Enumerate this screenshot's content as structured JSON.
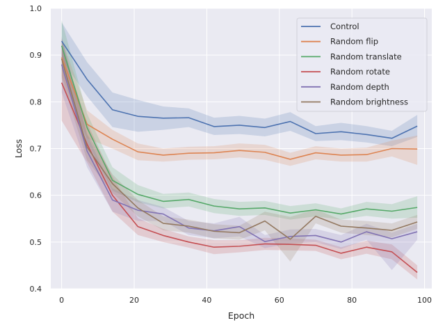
{
  "chart_data": {
    "type": "line",
    "title": "",
    "xlabel": "Epoch",
    "ylabel": "Loss",
    "xlim": [
      -3,
      102
    ],
    "ylim": [
      0.4,
      1.0
    ],
    "xticks": [
      "0",
      "20",
      "40",
      "60",
      "80",
      "100"
    ],
    "yticks": [
      "0.4",
      "0.5",
      "0.6",
      "0.7",
      "0.8",
      "0.9",
      "1.0"
    ],
    "grid": true,
    "legend_position": "top-right",
    "x": [
      0,
      7,
      14,
      21,
      28,
      35,
      42,
      49,
      56,
      63,
      70,
      77,
      84,
      91,
      98
    ],
    "series": [
      {
        "name": "Control",
        "color": "#4c72b0",
        "values": [
          0.93,
          0.848,
          0.783,
          0.769,
          0.765,
          0.766,
          0.747,
          0.75,
          0.745,
          0.758,
          0.732,
          0.736,
          0.73,
          0.722,
          0.748
        ],
        "lower": [
          0.89,
          0.812,
          0.746,
          0.736,
          0.74,
          0.746,
          0.729,
          0.731,
          0.726,
          0.738,
          0.716,
          0.718,
          0.713,
          0.705,
          0.725
        ],
        "upper": [
          0.97,
          0.885,
          0.82,
          0.804,
          0.79,
          0.786,
          0.766,
          0.77,
          0.764,
          0.778,
          0.748,
          0.755,
          0.748,
          0.738,
          0.772
        ]
      },
      {
        "name": "Random flip",
        "color": "#dd8452",
        "values": [
          0.895,
          0.752,
          0.72,
          0.693,
          0.686,
          0.69,
          0.691,
          0.696,
          0.692,
          0.677,
          0.691,
          0.686,
          0.687,
          0.7,
          0.699
        ],
        "lower": [
          0.855,
          0.722,
          0.7,
          0.675,
          0.672,
          0.676,
          0.677,
          0.681,
          0.676,
          0.663,
          0.677,
          0.672,
          0.672,
          0.683,
          0.665
        ],
        "upper": [
          0.935,
          0.782,
          0.74,
          0.711,
          0.7,
          0.704,
          0.705,
          0.711,
          0.708,
          0.691,
          0.705,
          0.7,
          0.702,
          0.717,
          0.728
        ]
      },
      {
        "name": "Random translate",
        "color": "#55a868",
        "values": [
          0.92,
          0.745,
          0.632,
          0.602,
          0.587,
          0.591,
          0.577,
          0.571,
          0.573,
          0.562,
          0.569,
          0.56,
          0.571,
          0.566,
          0.574
        ],
        "lower": [
          0.87,
          0.715,
          0.61,
          0.585,
          0.572,
          0.576,
          0.562,
          0.556,
          0.558,
          0.548,
          0.555,
          0.548,
          0.556,
          0.55,
          0.552
        ],
        "upper": [
          0.975,
          0.775,
          0.66,
          0.622,
          0.603,
          0.606,
          0.592,
          0.586,
          0.588,
          0.577,
          0.583,
          0.572,
          0.586,
          0.581,
          0.598
        ]
      },
      {
        "name": "Random rotate",
        "color": "#c44e52",
        "values": [
          0.841,
          0.71,
          0.6,
          0.533,
          0.514,
          0.5,
          0.489,
          0.491,
          0.496,
          0.495,
          0.493,
          0.476,
          0.489,
          0.479,
          0.435
        ],
        "lower": [
          0.76,
          0.67,
          0.565,
          0.515,
          0.5,
          0.488,
          0.474,
          0.478,
          0.483,
          0.482,
          0.481,
          0.463,
          0.475,
          0.463,
          0.42
        ],
        "upper": [
          0.92,
          0.755,
          0.64,
          0.551,
          0.528,
          0.512,
          0.504,
          0.504,
          0.509,
          0.508,
          0.505,
          0.489,
          0.503,
          0.495,
          0.45
        ]
      },
      {
        "name": "Random depth",
        "color": "#8172b3",
        "values": [
          0.88,
          0.695,
          0.59,
          0.568,
          0.56,
          0.53,
          0.524,
          0.533,
          0.501,
          0.512,
          0.514,
          0.5,
          0.522,
          0.507,
          0.522
        ],
        "lower": [
          0.82,
          0.66,
          0.565,
          0.545,
          0.545,
          0.515,
          0.508,
          0.512,
          0.487,
          0.497,
          0.5,
          0.485,
          0.505,
          0.44,
          0.505
        ],
        "upper": [
          0.94,
          0.73,
          0.615,
          0.59,
          0.575,
          0.545,
          0.54,
          0.554,
          0.515,
          0.527,
          0.528,
          0.515,
          0.539,
          0.52,
          0.539
        ]
      },
      {
        "name": "Random brightness",
        "color": "#937860",
        "values": [
          0.892,
          0.703,
          0.625,
          0.573,
          0.54,
          0.534,
          0.523,
          0.52,
          0.545,
          0.506,
          0.555,
          0.534,
          0.53,
          0.525,
          0.543
        ],
        "lower": [
          0.85,
          0.675,
          0.605,
          0.555,
          0.525,
          0.52,
          0.508,
          0.505,
          0.525,
          0.458,
          0.54,
          0.52,
          0.515,
          0.51,
          0.528
        ],
        "upper": [
          0.935,
          0.732,
          0.645,
          0.59,
          0.555,
          0.548,
          0.538,
          0.535,
          0.565,
          0.554,
          0.57,
          0.548,
          0.545,
          0.54,
          0.558
        ]
      }
    ]
  }
}
